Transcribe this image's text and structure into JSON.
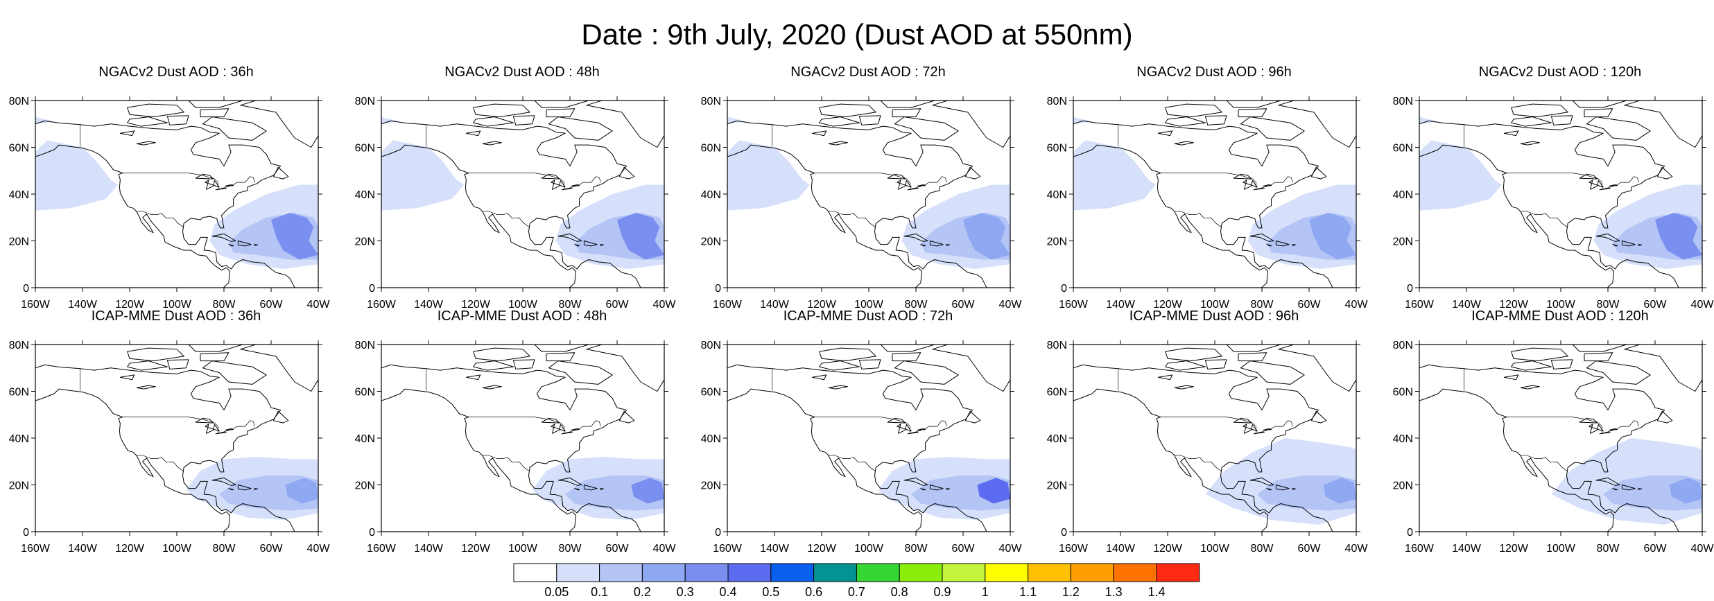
{
  "title": "Date : 9th July, 2020 (Dust AOD at 550nm)",
  "axes": {
    "lat_labels": [
      "0",
      "20N",
      "40N",
      "60N",
      "80N"
    ],
    "lon_labels": [
      "160W",
      "140W",
      "120W",
      "100W",
      "80W",
      "60W",
      "40W"
    ],
    "lon_range": [
      -160,
      -40
    ],
    "lat_range": [
      0,
      80
    ]
  },
  "panels": [
    {
      "title": "NGACv2 Dust AOD : 36h",
      "model": "NGACv2",
      "lead": "36h"
    },
    {
      "title": "NGACv2 Dust AOD : 48h",
      "model": "NGACv2",
      "lead": "48h"
    },
    {
      "title": "NGACv2 Dust AOD : 72h",
      "model": "NGACv2",
      "lead": "72h"
    },
    {
      "title": "NGACv2 Dust AOD : 96h",
      "model": "NGACv2",
      "lead": "96h"
    },
    {
      "title": "NGACv2 Dust AOD : 120h",
      "model": "NGACv2",
      "lead": "120h"
    },
    {
      "title": "ICAP-MME Dust AOD : 36h",
      "model": "ICAP-MME",
      "lead": "36h"
    },
    {
      "title": "ICAP-MME Dust AOD : 48h",
      "model": "ICAP-MME",
      "lead": "48h"
    },
    {
      "title": "ICAP-MME Dust AOD : 72h",
      "model": "ICAP-MME",
      "lead": "72h"
    },
    {
      "title": "ICAP-MME Dust AOD : 96h",
      "model": "ICAP-MME",
      "lead": "96h"
    },
    {
      "title": "ICAP-MME Dust AOD : 120h",
      "model": "ICAP-MME",
      "lead": "120h"
    }
  ],
  "colorbar": {
    "labels": [
      "0.05",
      "0.1",
      "0.2",
      "0.3",
      "0.4",
      "0.5",
      "0.6",
      "0.7",
      "0.8",
      "0.9",
      "1",
      "1.1",
      "1.2",
      "1.3",
      "1.4"
    ],
    "colors": [
      "#ffffff",
      "#d6e0fa",
      "#b3c4f5",
      "#8fa8f2",
      "#7a8ff0",
      "#5c6cf0",
      "#0b5fed",
      "#039393",
      "#36d636",
      "#88ee0a",
      "#c4f53c",
      "#ffff00",
      "#fec000",
      "#ff9e00",
      "#fe7200",
      "#ff2a12"
    ]
  },
  "shading_colors": {
    "light": "#d6e0fa",
    "low": "#b3c4f5",
    "mid": "#8fa8f2",
    "high": "#7a8ff0",
    "peak": "#5c6cf0"
  }
}
